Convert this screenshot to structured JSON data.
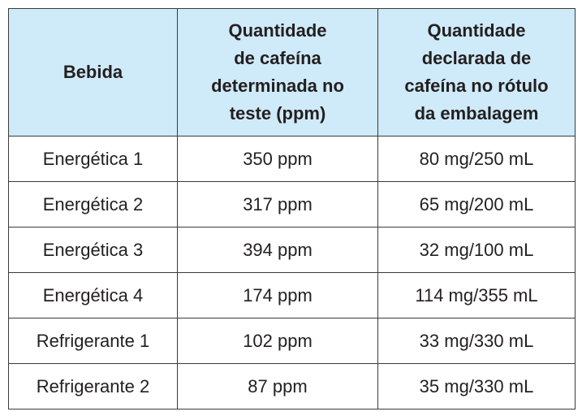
{
  "table": {
    "header": [
      [
        "Bebida"
      ],
      [
        "Quantidade",
        "de cafeína",
        "determinada no",
        "teste (ppm)"
      ],
      [
        "Quantidade",
        "declarada de",
        "cafeína no rótulo",
        "da embalagem"
      ]
    ],
    "rows": [
      [
        "Energética 1",
        "350 ppm",
        "80 mg/250 mL"
      ],
      [
        "Energética 2",
        "317 ppm",
        "65 mg/200 mL"
      ],
      [
        "Energética 3",
        "394 ppm",
        "32 mg/100 mL"
      ],
      [
        "Energética 4",
        "174 ppm",
        "114 mg/355 mL"
      ],
      [
        "Refrigerante 1",
        "102 ppm",
        "33 mg/330 mL"
      ],
      [
        "Refrigerante 2",
        "87 ppm",
        "35 mg/330 mL"
      ]
    ]
  }
}
